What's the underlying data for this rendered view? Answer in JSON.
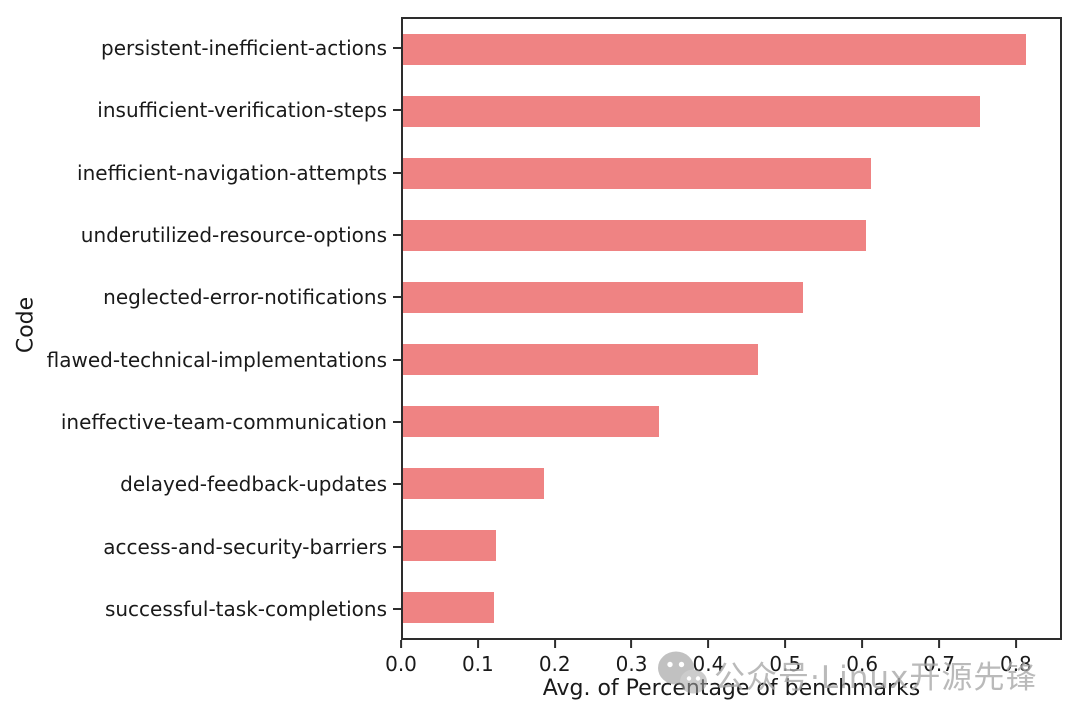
{
  "chart_data": {
    "type": "bar",
    "orientation": "horizontal",
    "title": "",
    "xlabel": "Avg. of Percentage of benchmarks",
    "ylabel": "Code",
    "categories": [
      "persistent-inefficient-actions",
      "insufficient-verification-steps",
      "inefficient-navigation-attempts",
      "underutilized-resource-options",
      "neglected-error-notifications",
      "flawed-technical-implementations",
      "ineffective-team-communication",
      "delayed-feedback-updates",
      "access-and-security-barriers",
      "successful-task-completions"
    ],
    "values": [
      0.815,
      0.755,
      0.613,
      0.606,
      0.524,
      0.465,
      0.335,
      0.184,
      0.122,
      0.119
    ],
    "xlim": [
      0,
      0.86
    ],
    "xticks": [
      0.0,
      0.1,
      0.2,
      0.3,
      0.4,
      0.5,
      0.6,
      0.7,
      0.8
    ],
    "xtick_labels": [
      "0.0",
      "0.1",
      "0.2",
      "0.3",
      "0.4",
      "0.5",
      "0.6",
      "0.7",
      "0.8"
    ],
    "bar_color": "#ef8383",
    "spine_color": "#2d2d2d",
    "text_color": "#1a1a1a",
    "grid": false,
    "legend_position": "none"
  },
  "watermark": {
    "icon": "wechat-logo-icon",
    "text": "公众号·Linux开源先锋",
    "color": "#a9a9a9"
  }
}
